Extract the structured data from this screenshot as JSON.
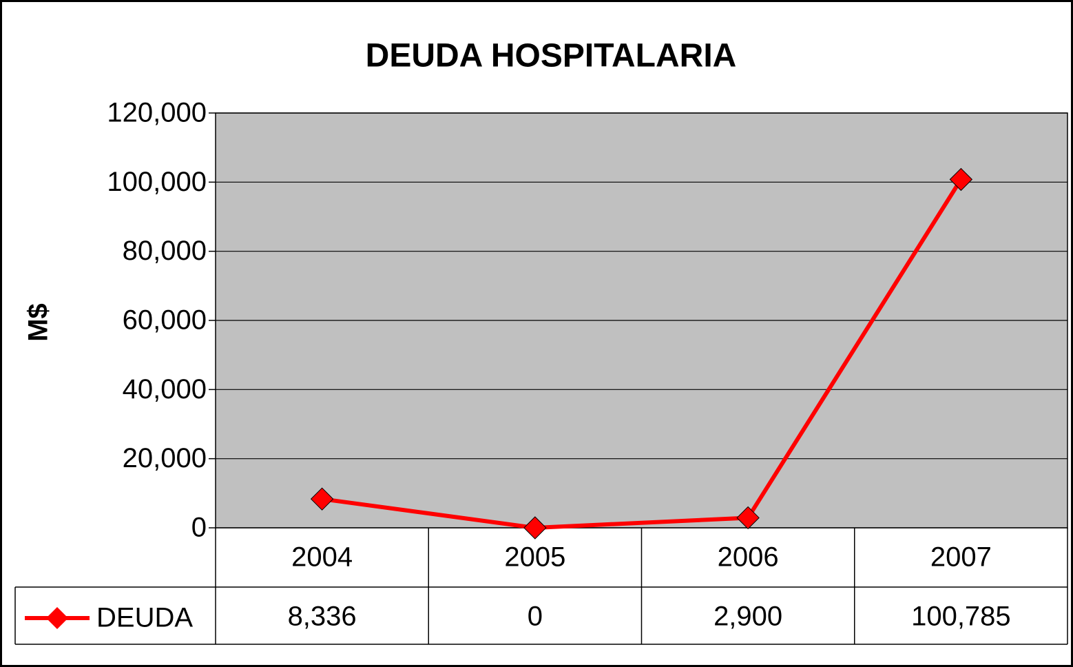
{
  "chart_data": {
    "type": "line",
    "title": "DEUDA HOSPITALARIA",
    "y_label": "M$",
    "categories": [
      "2004",
      "2005",
      "2006",
      "2007"
    ],
    "series": [
      {
        "name": "DEUDA",
        "color": "#ff0000",
        "values": [
          8336,
          0,
          2900,
          100785
        ],
        "value_labels": [
          "8,336",
          "0",
          "2,900",
          "100,785"
        ]
      }
    ],
    "ylim": [
      0,
      120000
    ],
    "yticks": [
      0,
      {
        "value": 20000,
        "label": "20,000"
      },
      {
        "value": 40000,
        "label": "40,000"
      },
      {
        "value": 60000,
        "label": "60,000"
      },
      {
        "value": 80000,
        "label": "80,000"
      },
      {
        "value": 100000,
        "label": "100,000"
      },
      {
        "value": 120000,
        "label": "120,000"
      }
    ],
    "grid": true,
    "plot_background": "#c0c0c0"
  }
}
